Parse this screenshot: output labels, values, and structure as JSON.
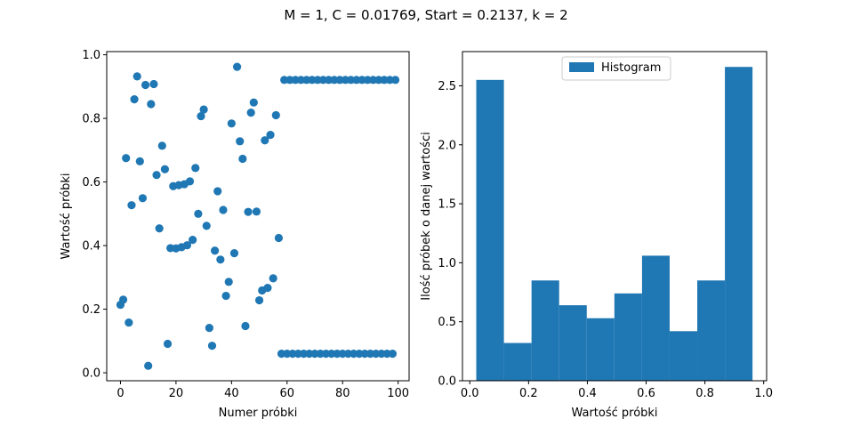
{
  "figure": {
    "suptitle": "M = 1, C = 0.01769, Start = 0.2137, k = 2"
  },
  "chart_data": [
    {
      "type": "scatter",
      "xlabel": "Numer próbki",
      "ylabel": "Wartość próbki",
      "xlim": [
        -4.95,
        103.95
      ],
      "ylim": [
        -0.025,
        1.01
      ],
      "xticks": [
        0,
        20,
        40,
        60,
        80,
        100
      ],
      "yticks": [
        0.0,
        0.2,
        0.4,
        0.6,
        0.8,
        1.0
      ],
      "xtick_labels": [
        "0",
        "20",
        "40",
        "60",
        "80",
        "100"
      ],
      "ytick_labels": [
        "0.0",
        "0.2",
        "0.4",
        "0.6",
        "0.8",
        "1.0"
      ],
      "color": "#1f77b4",
      "x": [
        0,
        1,
        2,
        3,
        4,
        5,
        6,
        7,
        8,
        9,
        10,
        11,
        12,
        13,
        14,
        15,
        16,
        17,
        18,
        19,
        20,
        21,
        22,
        23,
        24,
        25,
        26,
        27,
        28,
        29,
        30,
        31,
        32,
        33,
        34,
        35,
        36,
        37,
        38,
        39,
        40,
        41,
        42,
        43,
        44,
        45,
        46,
        47,
        48,
        49,
        50,
        51,
        52,
        53,
        54,
        55,
        56,
        57,
        58,
        59,
        60,
        61,
        62,
        63,
        64,
        65,
        66,
        67,
        68,
        69,
        70,
        71,
        72,
        73,
        74,
        75,
        76,
        77,
        78,
        79,
        80,
        81,
        82,
        83,
        84,
        85,
        86,
        87,
        88,
        89,
        90,
        91,
        92,
        93,
        94,
        95,
        96,
        97,
        98,
        99
      ],
      "y": [
        0.214,
        0.23,
        0.675,
        0.158,
        0.527,
        0.86,
        0.932,
        0.665,
        0.549,
        0.905,
        0.022,
        0.845,
        0.908,
        0.622,
        0.454,
        0.714,
        0.64,
        0.091,
        0.392,
        0.587,
        0.391,
        0.59,
        0.395,
        0.593,
        0.401,
        0.602,
        0.418,
        0.644,
        0.5,
        0.807,
        0.828,
        0.462,
        0.141,
        0.085,
        0.384,
        0.571,
        0.356,
        0.512,
        0.242,
        0.286,
        0.784,
        0.376,
        0.962,
        0.728,
        0.673,
        0.147,
        0.506,
        0.818,
        0.85,
        0.507,
        0.228,
        0.259,
        0.731,
        0.267,
        0.748,
        0.297,
        0.81,
        0.424,
        0.06,
        0.921,
        0.06,
        0.921,
        0.06,
        0.921,
        0.06,
        0.921,
        0.06,
        0.921,
        0.06,
        0.921,
        0.06,
        0.921,
        0.06,
        0.921,
        0.06,
        0.921,
        0.06,
        0.921,
        0.06,
        0.921,
        0.06,
        0.921,
        0.06,
        0.921,
        0.06,
        0.921,
        0.06,
        0.921,
        0.06,
        0.921,
        0.06,
        0.921,
        0.06,
        0.921,
        0.06,
        0.921,
        0.06,
        0.921,
        0.06,
        0.921
      ]
    },
    {
      "type": "bar",
      "subtype": "histogram",
      "xlabel": "Wartość próbki",
      "ylabel": "Ilość próbek o danej wartości",
      "xlim": [
        -0.025,
        1.01
      ],
      "ylim": [
        0,
        2.79
      ],
      "xticks": [
        0.0,
        0.2,
        0.4,
        0.6,
        0.8,
        1.0
      ],
      "yticks": [
        0.0,
        0.5,
        1.0,
        1.5,
        2.0,
        2.5
      ],
      "xtick_labels": [
        "0.0",
        "0.2",
        "0.4",
        "0.6",
        "0.8",
        "1.0"
      ],
      "ytick_labels": [
        "0.0",
        "0.5",
        "1.0",
        "1.5",
        "2.0",
        "2.5"
      ],
      "bin_edges": [
        0.022,
        0.116,
        0.21,
        0.304,
        0.398,
        0.492,
        0.586,
        0.68,
        0.774,
        0.868,
        0.962
      ],
      "values": [
        2.55,
        0.32,
        0.85,
        0.64,
        0.53,
        0.74,
        1.06,
        0.42,
        0.85,
        2.66
      ],
      "color": "#1f77b4",
      "legend": {
        "position": "top-center",
        "entries": [
          "Histogram"
        ]
      }
    }
  ]
}
